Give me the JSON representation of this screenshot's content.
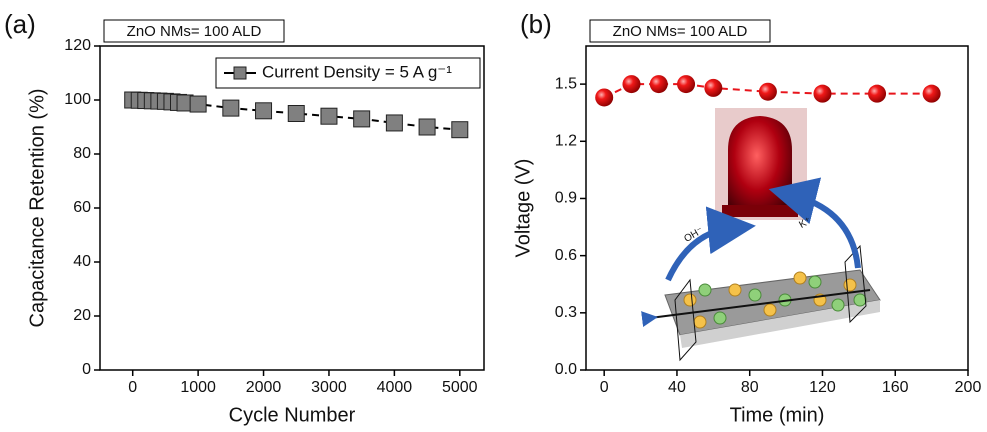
{
  "chart_data": [
    {
      "type": "line",
      "panel_label": "(a)",
      "annotation": "ZnO NMs= 100 ALD",
      "x_label": "Cycle Number",
      "y_label": "Capacitance Retention (%)",
      "x": [
        0,
        100,
        200,
        300,
        400,
        500,
        600,
        700,
        800,
        1000,
        1500,
        2000,
        2500,
        3000,
        3500,
        4000,
        4500,
        5000
      ],
      "series": [
        {
          "name": "Current Density = 5 A g⁻¹",
          "color": "#808080",
          "values": [
            100,
            99.9,
            99.8,
            99.7,
            99.6,
            99.5,
            99.3,
            99.1,
            98.9,
            98.5,
            97,
            96,
            95,
            94,
            93,
            91.5,
            90,
            89
          ]
        }
      ],
      "marker": "square",
      "line_color": "#000000",
      "legend": "upper right",
      "xlim": [
        -500,
        5370
      ],
      "xticks": [
        0,
        1000,
        2000,
        3000,
        4000,
        5000
      ],
      "ylim": [
        0,
        120
      ],
      "yticks": [
        0,
        20,
        40,
        60,
        80,
        100,
        120
      ]
    },
    {
      "type": "line",
      "panel_label": "(b)",
      "annotation": "ZnO NMs= 100 ALD",
      "x_label": "Time (min)",
      "y_label": "Voltage (V)",
      "x": [
        0,
        15,
        30,
        45,
        60,
        90,
        120,
        150,
        180
      ],
      "values": [
        1.43,
        1.5,
        1.5,
        1.5,
        1.48,
        1.46,
        1.45,
        1.45,
        1.45
      ],
      "color": "#e8141b",
      "marker": "sphere",
      "line_color": "#e8141b",
      "inset_labels": [
        "OH⁻",
        "K⁺"
      ],
      "xlim": [
        -10,
        200
      ],
      "xticks": [
        0,
        40,
        80,
        120,
        160,
        200
      ],
      "ylim": [
        0,
        1.7
      ],
      "yticks": [
        {
          "value": 0,
          "label": "0.0"
        },
        0.3,
        0.6,
        0.9,
        1.2,
        1.5
      ]
    }
  ]
}
